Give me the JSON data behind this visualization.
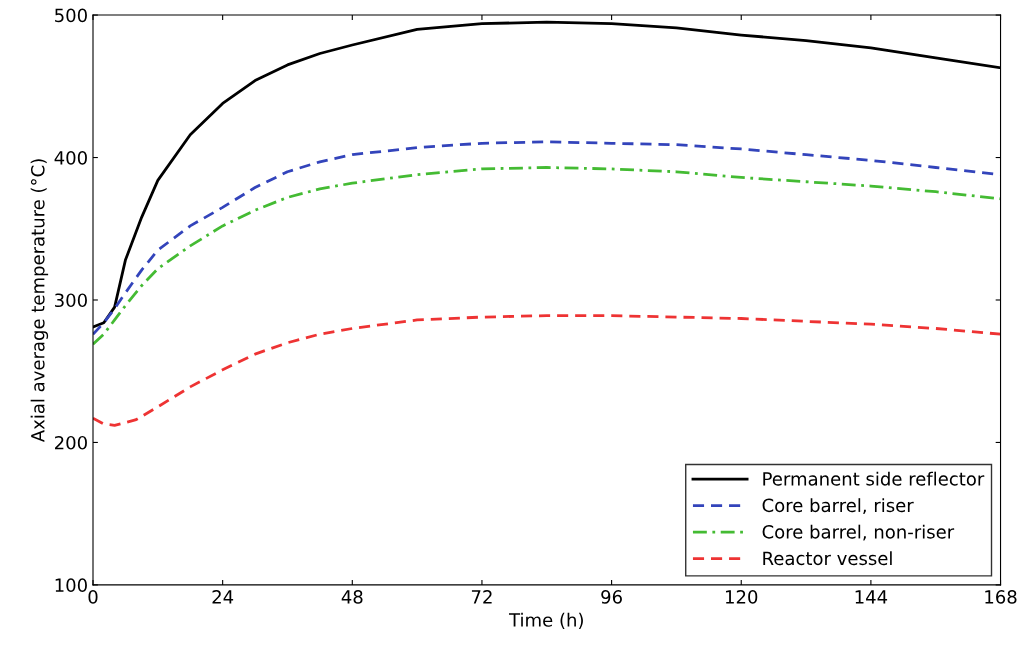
{
  "chart_data": {
    "type": "line",
    "xlabel": "Time (h)",
    "ylabel": "Axial average temperature (°C)",
    "xlim": [
      0,
      168
    ],
    "xticks": [
      0,
      24,
      48,
      72,
      96,
      120,
      144,
      168
    ],
    "ylim": [
      100,
      500
    ],
    "yticks": [
      100,
      200,
      300,
      400,
      500
    ],
    "grid": false,
    "legend": "bottom right",
    "series": [
      {
        "name": "Permanent side reflector",
        "color": "#000000",
        "line_style": "solid",
        "x": [
          0,
          2,
          4,
          6,
          9,
          12,
          18,
          24,
          30,
          36,
          42,
          48,
          60,
          72,
          84,
          96,
          108,
          120,
          132,
          144,
          156,
          168
        ],
        "values": [
          281,
          284,
          295,
          328,
          358,
          384,
          416,
          438,
          454,
          465,
          473,
          479,
          490,
          494,
          495,
          494,
          491,
          486,
          482,
          477,
          470,
          463
        ]
      },
      {
        "name": "Core barrel, riser",
        "color": "#3344bb",
        "line_style": "dashed",
        "x": [
          0,
          2,
          4,
          6,
          9,
          12,
          18,
          24,
          30,
          36,
          42,
          48,
          60,
          72,
          84,
          96,
          108,
          120,
          132,
          144,
          156,
          168
        ],
        "values": [
          276,
          284,
          294,
          305,
          321,
          335,
          352,
          365,
          379,
          390,
          397,
          402,
          407,
          410,
          411,
          410,
          409,
          406,
          402,
          398,
          393,
          388
        ]
      },
      {
        "name": "Core barrel, non-riser",
        "color": "#44bb33",
        "line_style": "dashdot",
        "x": [
          0,
          2,
          4,
          6,
          9,
          12,
          18,
          24,
          30,
          36,
          42,
          48,
          60,
          72,
          84,
          96,
          108,
          120,
          132,
          144,
          156,
          168
        ],
        "values": [
          269,
          276,
          286,
          296,
          310,
          322,
          338,
          352,
          363,
          372,
          378,
          382,
          388,
          392,
          393,
          392,
          390,
          386,
          383,
          380,
          376,
          371
        ]
      },
      {
        "name": "Reactor vessel",
        "color": "#ee3333",
        "line_style": "dashed",
        "x": [
          0,
          2,
          4,
          8,
          12,
          18,
          24,
          30,
          36,
          42,
          48,
          60,
          72,
          84,
          96,
          108,
          120,
          132,
          144,
          156,
          168
        ],
        "values": [
          217,
          213,
          212,
          216,
          225,
          239,
          251,
          262,
          270,
          276,
          280,
          286,
          288,
          289,
          289,
          288,
          287,
          285,
          283,
          280,
          276
        ]
      }
    ]
  }
}
